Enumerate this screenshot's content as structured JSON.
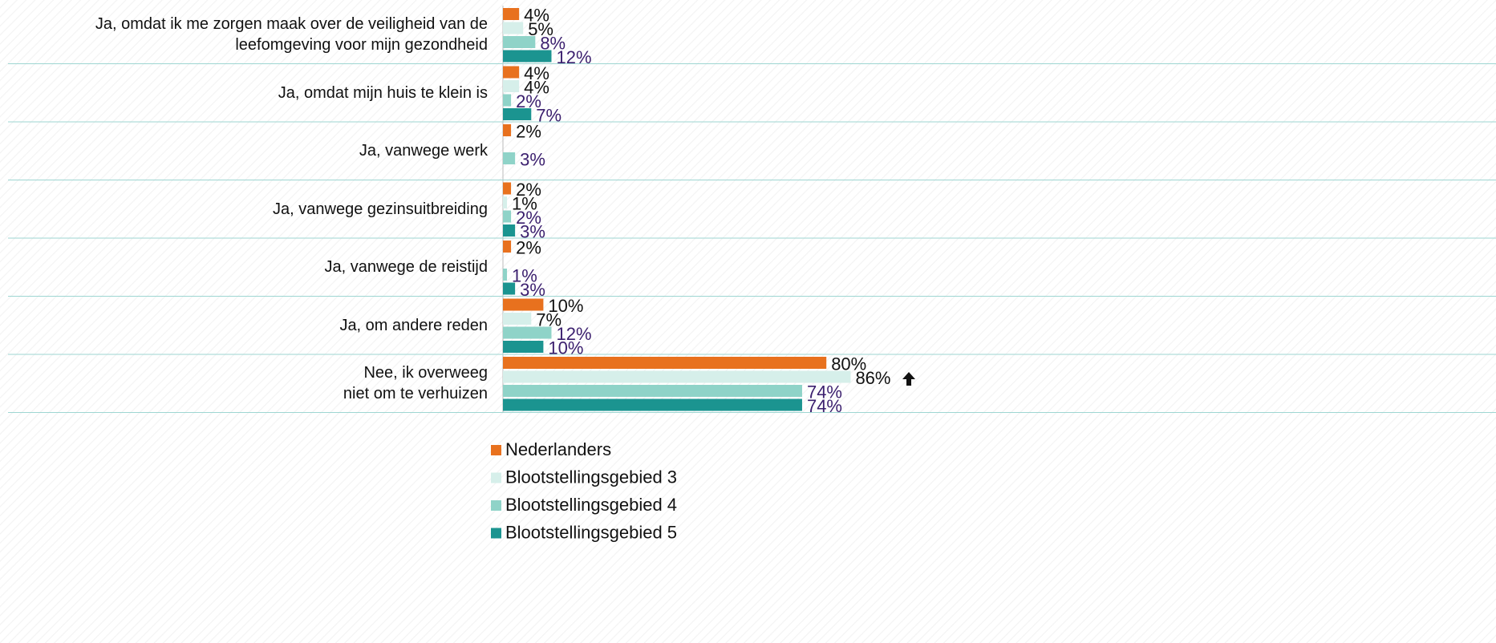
{
  "chart_data": {
    "type": "hbar",
    "categories": [
      "Ja, omdat ik me zorgen maak over de veiligheid van de\nleefomgeving voor mijn gezondheid",
      "Ja, omdat mijn huis te klein is",
      "Ja, vanwege werk",
      "Ja, vanwege gezinsuitbreiding",
      "Ja, vanwege de reistijd",
      "Ja, om andere reden",
      "Nee, ik overweeg\nniet om te verhuizen"
    ],
    "xlim": [
      0,
      100
    ],
    "series": [
      {
        "name": "Nederlanders",
        "color": "#e8711e",
        "label_color": "#111111",
        "values": [
          4,
          4,
          2,
          2,
          2,
          10,
          80
        ],
        "value_labels": [
          "4%",
          "4%",
          "2%",
          "2%",
          "2%",
          "10%",
          "80%"
        ]
      },
      {
        "name": "Blootstellingsgebied 3",
        "color": "#d6efea",
        "label_color": "#111111",
        "values": [
          5,
          4,
          null,
          1,
          null,
          7,
          86
        ],
        "value_labels": [
          "5%",
          "4%",
          null,
          "1%",
          null,
          "7%",
          "86%"
        ]
      },
      {
        "name": "Blootstellingsgebied 4",
        "color": "#8fd3c8",
        "label_color": "#3b1f6e",
        "values": [
          8,
          2,
          3,
          2,
          1,
          12,
          74
        ],
        "value_labels": [
          "8%",
          "2%",
          "3%",
          "2%",
          "1%",
          "12%",
          "74%"
        ]
      },
      {
        "name": "Blootstellingsgebied 5",
        "color": "#1b9490",
        "label_color": "#3b1f6e",
        "values": [
          12,
          7,
          null,
          3,
          3,
          10,
          74
        ],
        "value_labels": [
          "12%",
          "7%",
          null,
          "3%",
          "3%",
          "10%",
          "74%"
        ]
      }
    ]
  }
}
